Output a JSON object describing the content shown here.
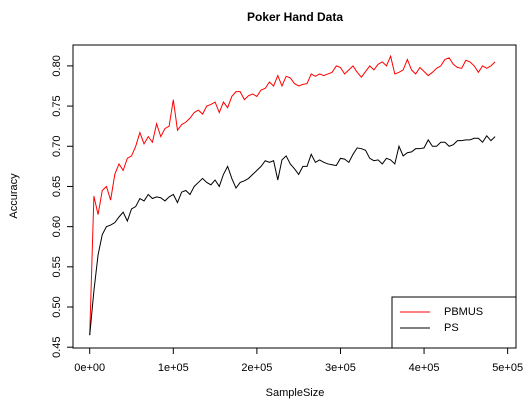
{
  "chart_data": {
    "type": "line",
    "title": "Poker Hand Data",
    "xlabel": "SampleSize",
    "ylabel": "Accuracy",
    "xlim": [
      -20000,
      510000
    ],
    "ylim": [
      0.449,
      0.826
    ],
    "xticks": [
      {
        "value": 0,
        "label": "0e+00"
      },
      {
        "value": 100000,
        "label": "1e+05"
      },
      {
        "value": 200000,
        "label": "2e+05"
      },
      {
        "value": 300000,
        "label": "3e+05"
      },
      {
        "value": 400000,
        "label": "4e+05"
      },
      {
        "value": 500000,
        "label": "5e+05"
      }
    ],
    "yticks": [
      {
        "value": 0.45,
        "label": "0.45"
      },
      {
        "value": 0.5,
        "label": "0.50"
      },
      {
        "value": 0.55,
        "label": "0.55"
      },
      {
        "value": 0.6,
        "label": "0.60"
      },
      {
        "value": 0.65,
        "label": "0.65"
      },
      {
        "value": 0.7,
        "label": "0.70"
      },
      {
        "value": 0.75,
        "label": "0.75"
      },
      {
        "value": 0.8,
        "label": "0.80"
      }
    ],
    "legend": "bottomright",
    "x": [
      0,
      5000,
      10000,
      15000,
      20000,
      25000,
      30000,
      35000,
      40000,
      45000,
      50000,
      55000,
      60000,
      65000,
      70000,
      75000,
      80000,
      85000,
      90000,
      95000,
      100000,
      105000,
      110000,
      115000,
      120000,
      125000,
      130000,
      135000,
      140000,
      145000,
      150000,
      155000,
      160000,
      165000,
      170000,
      175000,
      180000,
      185000,
      190000,
      195000,
      200000,
      205000,
      210000,
      215000,
      220000,
      225000,
      230000,
      235000,
      240000,
      245000,
      250000,
      255000,
      260000,
      265000,
      270000,
      275000,
      280000,
      285000,
      290000,
      295000,
      300000,
      305000,
      310000,
      315000,
      320000,
      325000,
      330000,
      335000,
      340000,
      345000,
      350000,
      355000,
      360000,
      365000,
      370000,
      375000,
      380000,
      385000,
      390000,
      395000,
      400000,
      405000,
      410000,
      415000,
      420000,
      425000,
      430000,
      435000,
      440000,
      445000,
      450000,
      455000,
      460000,
      465000,
      470000,
      475000,
      480000,
      485000
    ],
    "series": [
      {
        "name": "PBMUS",
        "color": "#ff0000",
        "values": [
          0.465,
          0.638,
          0.615,
          0.645,
          0.65,
          0.633,
          0.665,
          0.678,
          0.67,
          0.685,
          0.688,
          0.7,
          0.717,
          0.703,
          0.712,
          0.705,
          0.728,
          0.712,
          0.722,
          0.725,
          0.758,
          0.72,
          0.727,
          0.73,
          0.735,
          0.742,
          0.745,
          0.74,
          0.75,
          0.752,
          0.755,
          0.742,
          0.755,
          0.748,
          0.762,
          0.768,
          0.768,
          0.758,
          0.763,
          0.765,
          0.762,
          0.77,
          0.772,
          0.78,
          0.775,
          0.788,
          0.775,
          0.787,
          0.785,
          0.778,
          0.775,
          0.777,
          0.778,
          0.79,
          0.787,
          0.79,
          0.788,
          0.79,
          0.792,
          0.8,
          0.798,
          0.79,
          0.795,
          0.8,
          0.792,
          0.786,
          0.793,
          0.8,
          0.795,
          0.802,
          0.805,
          0.8,
          0.812,
          0.79,
          0.792,
          0.795,
          0.808,
          0.795,
          0.79,
          0.798,
          0.793,
          0.788,
          0.792,
          0.797,
          0.8,
          0.808,
          0.81,
          0.802,
          0.798,
          0.797,
          0.807,
          0.805,
          0.8,
          0.792,
          0.8,
          0.797,
          0.8,
          0.805
        ]
      },
      {
        "name": "PS",
        "color": "#000000",
        "values": [
          0.465,
          0.52,
          0.565,
          0.59,
          0.6,
          0.602,
          0.605,
          0.612,
          0.618,
          0.607,
          0.622,
          0.625,
          0.635,
          0.632,
          0.64,
          0.635,
          0.637,
          0.636,
          0.632,
          0.637,
          0.64,
          0.63,
          0.643,
          0.645,
          0.64,
          0.65,
          0.655,
          0.66,
          0.655,
          0.652,
          0.658,
          0.65,
          0.665,
          0.675,
          0.66,
          0.648,
          0.655,
          0.657,
          0.66,
          0.665,
          0.67,
          0.675,
          0.682,
          0.68,
          0.682,
          0.658,
          0.683,
          0.688,
          0.678,
          0.672,
          0.665,
          0.675,
          0.675,
          0.69,
          0.68,
          0.683,
          0.68,
          0.678,
          0.677,
          0.676,
          0.685,
          0.684,
          0.68,
          0.69,
          0.698,
          0.697,
          0.695,
          0.685,
          0.682,
          0.683,
          0.678,
          0.685,
          0.683,
          0.678,
          0.7,
          0.688,
          0.692,
          0.693,
          0.697,
          0.697,
          0.698,
          0.708,
          0.7,
          0.7,
          0.705,
          0.705,
          0.7,
          0.702,
          0.707,
          0.707,
          0.708,
          0.708,
          0.71,
          0.71,
          0.705,
          0.713,
          0.707,
          0.712
        ]
      }
    ]
  }
}
